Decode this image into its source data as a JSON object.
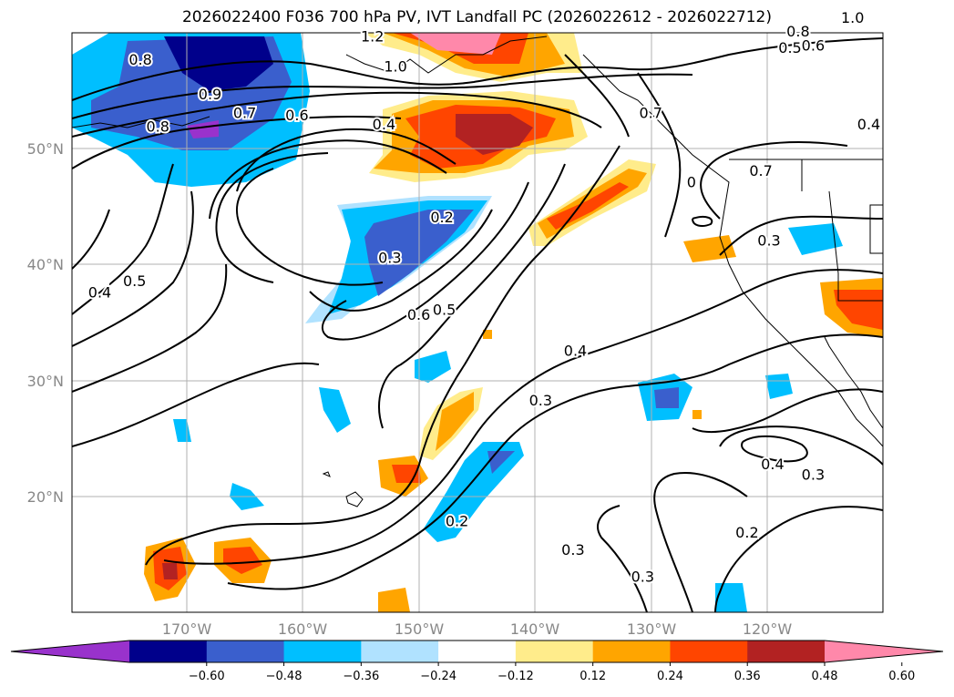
{
  "title": "2026022400 F036 700 hPa PV, IVT Landfall PC (2026022612 - 2026022712)",
  "map": {
    "lat_labels": [
      "50°N",
      "40°N",
      "30°N",
      "20°N"
    ],
    "lon_labels": [
      "170°W",
      "160°W",
      "150°W",
      "140°W",
      "130°W",
      "120°W"
    ],
    "contour_labels": [
      {
        "text": "0.8",
        "lon": -174.0,
        "lat": 57.6
      },
      {
        "text": "0.9",
        "lon": -168.0,
        "lat": 54.6
      },
      {
        "text": "0.8",
        "lon": -172.5,
        "lat": 51.8
      },
      {
        "text": "0.7",
        "lon": -165.0,
        "lat": 53.0
      },
      {
        "text": "0.6",
        "lon": -160.5,
        "lat": 52.8
      },
      {
        "text": "0.4",
        "lon": -153.0,
        "lat": 52.0
      },
      {
        "text": "1.2",
        "lon": -154.0,
        "lat": 59.6
      },
      {
        "text": "1.0",
        "lon": -152.0,
        "lat": 57.0
      },
      {
        "text": "0.2",
        "lon": -148.0,
        "lat": 44.0
      },
      {
        "text": "0.3",
        "lon": -152.5,
        "lat": 40.5
      },
      {
        "text": "0.6",
        "lon": -150.0,
        "lat": 35.6
      },
      {
        "text": "0.5",
        "lon": -147.8,
        "lat": 36.0
      },
      {
        "text": "0.4",
        "lon": -136.5,
        "lat": 32.5
      },
      {
        "text": "0.3",
        "lon": -139.5,
        "lat": 28.2
      },
      {
        "text": "0.2",
        "lon": -146.7,
        "lat": 17.8
      },
      {
        "text": "0.3",
        "lon": -136.7,
        "lat": 15.3
      },
      {
        "text": "0.3",
        "lon": -130.7,
        "lat": 13.0
      },
      {
        "text": "0.2",
        "lon": -121.7,
        "lat": 16.8
      },
      {
        "text": "0.4",
        "lon": -119.5,
        "lat": 22.7
      },
      {
        "text": "0.3",
        "lon": -116.0,
        "lat": 21.8
      },
      {
        "text": "0.3",
        "lon": -119.8,
        "lat": 42.0
      },
      {
        "text": "0.7",
        "lon": -120.5,
        "lat": 48.0
      },
      {
        "text": "0.5",
        "lon": -118.0,
        "lat": 58.6
      },
      {
        "text": "0.6",
        "lon": -116.0,
        "lat": 58.8
      },
      {
        "text": "0.8",
        "lon": -117.3,
        "lat": 60.0
      },
      {
        "text": "1.0",
        "lon": -112.6,
        "lat": 61.2
      },
      {
        "text": "0.4",
        "lon": -111.2,
        "lat": 52.0
      },
      {
        "text": "0.4",
        "lon": -177.5,
        "lat": 37.5
      },
      {
        "text": "0.5",
        "lon": -174.5,
        "lat": 38.5
      },
      {
        "text": "0.7",
        "lon": -130.0,
        "lat": 53.0
      },
      {
        "text": "0",
        "lon": -126.5,
        "lat": 47.0
      }
    ]
  },
  "colorbar": {
    "ticks": [
      "−0.60",
      "−0.48",
      "−0.36",
      "−0.24",
      "−0.12",
      "0.12",
      "0.24",
      "0.36",
      "0.48",
      "0.60"
    ],
    "colors": [
      "#9932cc",
      "#00008b",
      "#3a5fcd",
      "#00bfff",
      "#b0e2ff",
      "#ffffff",
      "#ffec8b",
      "#ffa500",
      "#ff4500",
      "#b22222",
      "#ff88aa"
    ]
  }
}
